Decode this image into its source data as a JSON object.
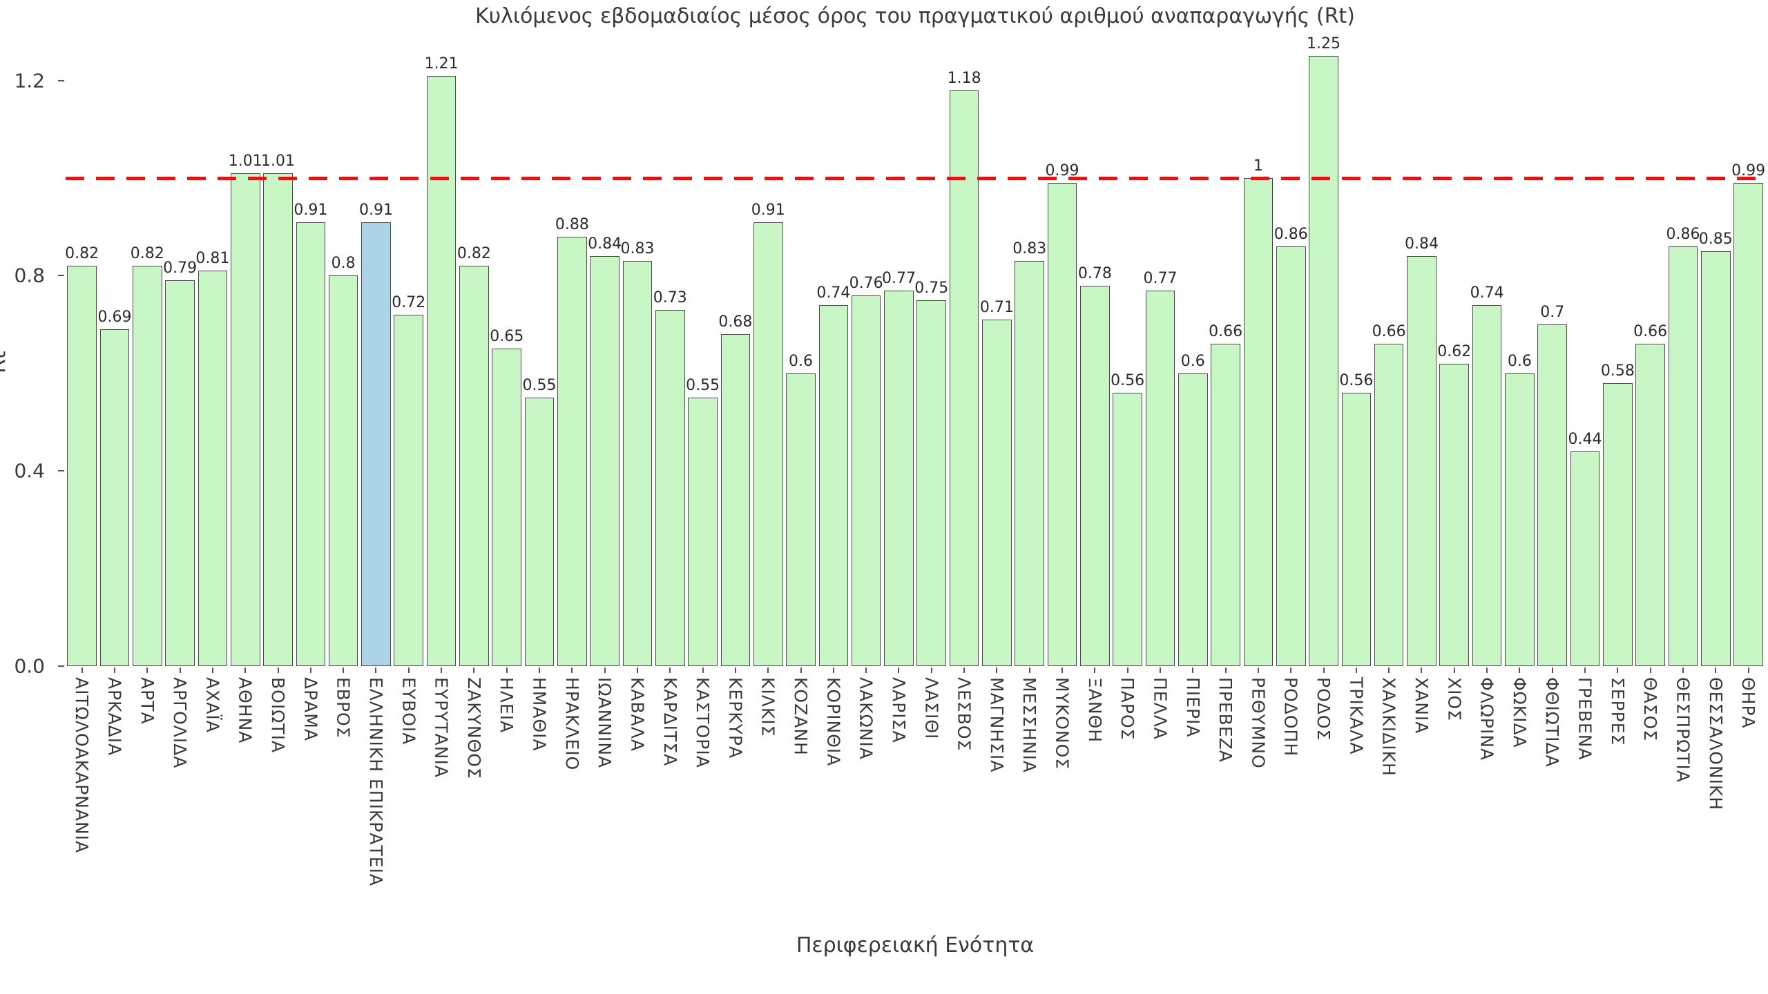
{
  "chart_data": {
    "type": "bar",
    "title": "Κυλιόμενος εβδομαδιαίος μέσος όρος του πραγματικού αριθμού αναπαραγωγής (Rt)",
    "xlabel": "Περιφερειακή Ενότητα",
    "ylabel": "Rt",
    "ylim": [
      0,
      1.3
    ],
    "grid": false,
    "legend": "none",
    "reference_line": {
      "value": 1.0,
      "style": "dashed",
      "color": "#e01616"
    },
    "yticks": [
      {
        "label": "0.0",
        "value": 0.0
      },
      {
        "label": "0.4",
        "value": 0.4
      },
      {
        "label": "0.8",
        "value": 0.8
      },
      {
        "label": "1.2",
        "value": 1.2
      }
    ],
    "bar_color": "#c8f7c5",
    "bar_edge_color": "#4a4a4a",
    "highlight_color": "#acd3e6",
    "highlight_index": 9,
    "categories": [
      "ΑΙΤΩΛΟΑΚΑΡΝΑΝΙΑ",
      "ΑΡΚΑΔΙΑ",
      "ΑΡΤΑ",
      "ΑΡΓΟΛΙΔΑ",
      "ΑΧΑΪΑ",
      "ΑΘΗΝΑ",
      "ΒΟΙΩΤΙΑ",
      "ΔΡΑΜΑ",
      "ΕΒΡΟΣ",
      "ΕΛΛΗΝΙΚΗ ΕΠΙΚΡΑΤΕΙΑ",
      "ΕΥΒΟΙΑ",
      "ΕΥΡΥΤΑΝΙΑ",
      "ΖΑΚΥΝΘΟΣ",
      "ΗΛΕΙΑ",
      "ΗΜΑΘΙΑ",
      "ΗΡΑΚΛΕΙΟ",
      "ΙΩΑΝΝΙΝΑ",
      "ΚΑΒΑΛΑ",
      "ΚΑΡΔΙΤΣΑ",
      "ΚΑΣΤΟΡΙΑ",
      "ΚΕΡΚΥΡΑ",
      "ΚΙΛΚΙΣ",
      "ΚΟΖΑΝΗ",
      "ΚΟΡΙΝΘΙΑ",
      "ΛΑΚΩΝΙΑ",
      "ΛΑΡΙΣΑ",
      "ΛΑΣΙΘΙ",
      "ΛΕΣΒΟΣ",
      "ΜΑΓΝΗΣΙΑ",
      "ΜΕΣΣΗΝΙΑ",
      "ΜΥΚΟΝΟΣ",
      "ΞΑΝΘΗ",
      "ΠΑΡΟΣ",
      "ΠΕΛΛΑ",
      "ΠΙΕΡΙΑ",
      "ΠΡΕΒΕΖΑ",
      "ΡΕΘΥΜΝΟ",
      "ΡΟΔΟΠΗ",
      "ΡΟΔΟΣ",
      "ΤΡΙΚΑΛΑ",
      "ΧΑΛΚΙΔΙΚΗ",
      "ΧΑΝΙΑ",
      "ΧΙΟΣ",
      "ΦΛΩΡΙΝΑ",
      "ΦΩΚΙΔΑ",
      "ΦΘΙΩΤΙΔΑ",
      "ΓΡΕΒΕΝΑ",
      "ΣΕΡΡΕΣ",
      "ΘΑΣΟΣ",
      "ΘΕΣΠΡΩΤΙΑ",
      "ΘΕΣΣΑΛΟΝΙΚΗ",
      "ΘΗΡΑ"
    ],
    "values": [
      0.82,
      0.69,
      0.82,
      0.79,
      0.81,
      1.01,
      1.01,
      0.91,
      0.8,
      0.91,
      0.72,
      1.21,
      0.82,
      0.65,
      0.55,
      0.88,
      0.84,
      0.83,
      0.73,
      0.55,
      0.68,
      0.91,
      0.6,
      0.74,
      0.76,
      0.77,
      0.75,
      1.18,
      0.71,
      0.83,
      0.99,
      0.78,
      0.56,
      0.77,
      0.6,
      0.66,
      1,
      0.86,
      1.25,
      0.56,
      0.66,
      0.84,
      0.62,
      0.74,
      0.6,
      0.7,
      0.44,
      0.58,
      0.66,
      0.86,
      0.85,
      0.99
    ],
    "value_labels": [
      "0.82",
      "0.69",
      "0.82",
      "0.79",
      "0.81",
      "1.01",
      "1.01",
      "0.91",
      "0.8",
      "0.91",
      "0.72",
      "1.21",
      "0.82",
      "0.65",
      "0.55",
      "0.88",
      "0.84",
      "0.83",
      "0.73",
      "0.55",
      "0.68",
      "0.91",
      "0.6",
      "0.74",
      "0.76",
      "0.77",
      "0.75",
      "1.18",
      "0.71",
      "0.83",
      "0.99",
      "0.78",
      "0.56",
      "0.77",
      "0.6",
      "0.66",
      "1",
      "0.86",
      "1.25",
      "0.56",
      "0.66",
      "0.84",
      "0.62",
      "0.74",
      "0.6",
      "0.7",
      "0.44",
      "0.58",
      "0.66",
      "0.86",
      "0.85",
      "0.99"
    ]
  }
}
